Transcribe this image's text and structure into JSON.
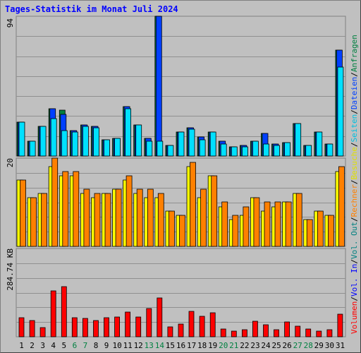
{
  "title": "Tages-Statistik im Monat Juli 2024",
  "chart_data": [
    {
      "type": "bar",
      "name": "top",
      "ymax_label": "94",
      "ylim": [
        0,
        94
      ],
      "categories": [
        "1",
        "2",
        "3",
        "4",
        "5",
        "6",
        "7",
        "8",
        "9",
        "10",
        "11",
        "12",
        "13",
        "14",
        "15",
        "16",
        "17",
        "18",
        "19",
        "20",
        "21",
        "22",
        "23",
        "24",
        "25",
        "26",
        "27",
        "28",
        "29",
        "30",
        "31"
      ],
      "weekend_days": [
        "6",
        "7",
        "13",
        "14",
        "20",
        "21",
        "27",
        "28"
      ],
      "series": [
        {
          "name": "Anfragen",
          "color": "#008040",
          "values": [
            23,
            10,
            20,
            32,
            31,
            17,
            21,
            20,
            11,
            12,
            33,
            21,
            12,
            94,
            7,
            16,
            19,
            13,
            16,
            10,
            6,
            7,
            10,
            15,
            8,
            9,
            22,
            7,
            16,
            8,
            71
          ]
        },
        {
          "name": "Dateien",
          "color": "#0040ff",
          "values": [
            23,
            10,
            20,
            32,
            28,
            17,
            21,
            20,
            11,
            12,
            33,
            21,
            12,
            94,
            7,
            16,
            19,
            13,
            16,
            10,
            6,
            7,
            10,
            15,
            8,
            9,
            22,
            7,
            16,
            8,
            71
          ]
        },
        {
          "name": "Seiten",
          "color": "#00e0ff",
          "values": [
            23,
            10,
            20,
            25,
            17,
            16,
            20,
            19,
            11,
            12,
            32,
            21,
            10,
            10,
            7,
            16,
            18,
            11,
            16,
            8,
            6,
            6,
            10,
            8,
            7,
            9,
            22,
            7,
            16,
            8,
            60
          ]
        }
      ],
      "legend": [
        "Anfragen",
        "Dateien",
        "Seiten",
        "Besuche",
        "Rechner"
      ]
    },
    {
      "type": "bar",
      "name": "middle",
      "ymax_label": "20",
      "ylim": [
        0,
        20
      ],
      "categories": [
        "1",
        "2",
        "3",
        "4",
        "5",
        "6",
        "7",
        "8",
        "9",
        "10",
        "11",
        "12",
        "13",
        "14",
        "15",
        "16",
        "17",
        "18",
        "19",
        "20",
        "21",
        "22",
        "23",
        "24",
        "25",
        "26",
        "27",
        "28",
        "29",
        "30",
        "31"
      ],
      "series": [
        {
          "name": "Besuche",
          "color": "#ffff00",
          "values": [
            15,
            11,
            12,
            18,
            16,
            16,
            12,
            11,
            12,
            13,
            15,
            12,
            11,
            11,
            8,
            7,
            18,
            11,
            16,
            9,
            6,
            7,
            11,
            8,
            9,
            10,
            12,
            6,
            8,
            7,
            17
          ]
        },
        {
          "name": "Rechner",
          "color": "#ff8000",
          "values": [
            15,
            11,
            12,
            20,
            17,
            17,
            13,
            12,
            12,
            13,
            16,
            13,
            13,
            12,
            8,
            7,
            19,
            13,
            16,
            10,
            7,
            9,
            11,
            10,
            10,
            10,
            12,
            6,
            8,
            7,
            18
          ]
        }
      ],
      "legend": [
        "Besuche",
        "Rechner"
      ]
    },
    {
      "type": "bar",
      "name": "bottom",
      "ymax_label": "284.74 KB",
      "ylim": [
        0,
        427
      ],
      "categories": [
        "1",
        "2",
        "3",
        "4",
        "5",
        "6",
        "7",
        "8",
        "9",
        "10",
        "11",
        "12",
        "13",
        "14",
        "15",
        "16",
        "17",
        "18",
        "19",
        "20",
        "21",
        "22",
        "23",
        "24",
        "25",
        "26",
        "27",
        "28",
        "29",
        "30",
        "31"
      ],
      "series": [
        {
          "name": "Volumen",
          "color": "#ff0000",
          "values": [
            92,
            78,
            43,
            223,
            242,
            92,
            88,
            80,
            92,
            97,
            118,
            97,
            137,
            188,
            48,
            60,
            124,
            100,
            117,
            37,
            27,
            33,
            75,
            58,
            33,
            72,
            52,
            38,
            28,
            33,
            108
          ]
        }
      ],
      "legend": [
        "Volumen",
        "Vol. In",
        "Vol. Out"
      ]
    }
  ],
  "legend_labels": {
    "anfragen": "Anfragen",
    "dateien": "Dateien",
    "seiten": "Seiten",
    "besuche": "Besuche",
    "rechner": "Rechner",
    "volumen": "Volumen",
    "vol_in": "Vol. In",
    "vol_out": "Vol. Out",
    "sep": "/"
  },
  "colors": {
    "background": "#c0c0c0",
    "title": "#0000ff",
    "anfragen": "#008040",
    "dateien": "#0040ff",
    "seiten": "#00e0ff",
    "besuche": "#ffff00",
    "rechner": "#ff8000",
    "volumen": "#ff0000",
    "vol_in": "#0000ff",
    "vol_out": "#008080",
    "weekend_label": "#008040",
    "sep": "#000000"
  }
}
